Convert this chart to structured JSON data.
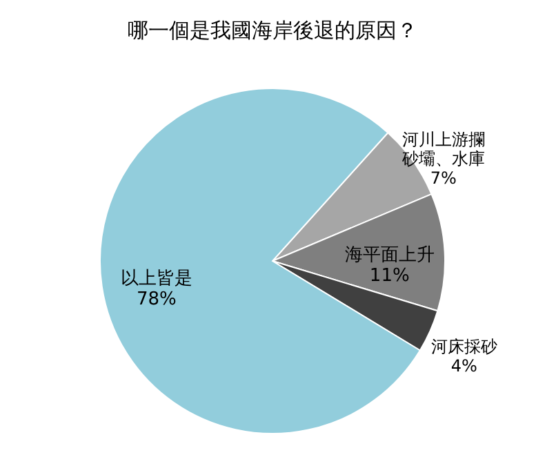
{
  "chart_data": {
    "type": "pie",
    "title": "哪一個是我國海岸後退的原因？",
    "categories": [
      "河川上游攔砂壩、水庫",
      "海平面上升",
      "河床採砂",
      "以上皆是"
    ],
    "values": [
      7,
      11,
      4,
      78
    ],
    "colors": [
      "#a6a6a6",
      "#7f7f7f",
      "#404040",
      "#92cddc"
    ],
    "value_labels": [
      "7%",
      "11%",
      "4%",
      "78%"
    ]
  }
}
